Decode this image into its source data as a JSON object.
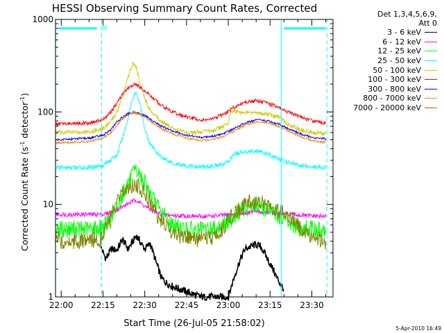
{
  "chart_data": {
    "type": "line",
    "title": "HESSI Observing Summary Count Rates, Corrected",
    "xlabel": "Start Time (26-Jul-05 21:58:02)",
    "ylabel_parts": [
      "Corrected Count Rate (s",
      "-1",
      " detector",
      "-1",
      ")"
    ],
    "x_tick_labels": [
      "22:00",
      "22:15",
      "22:30",
      "22:45",
      "23:00",
      "23:15",
      "23:30"
    ],
    "x_tick_minutes": [
      0,
      15,
      30,
      45,
      60,
      75,
      90
    ],
    "x_range_minutes": [
      -2.05,
      97.6
    ],
    "y_log": true,
    "ylim": [
      1,
      1000
    ],
    "y_tick_labels": [
      "1",
      "10",
      "100",
      "1000"
    ],
    "legend_title": [
      "Det 1,3,4,5,6,9,",
      "Att 0"
    ],
    "legend_position": "right",
    "night_marker_label": "N",
    "series": [
      {
        "name": "3 - 6 keV",
        "color": "#000000",
        "x": [
          14.3,
          16,
          18,
          20,
          22,
          24,
          26,
          27,
          28,
          30,
          32,
          34,
          36,
          38,
          40,
          50,
          60,
          62,
          64,
          66,
          68,
          70,
          72,
          74,
          76,
          78,
          80
        ],
        "y": [
          3.4,
          2.6,
          3.3,
          3.2,
          4.2,
          3.3,
          4.1,
          4.6,
          4.1,
          3.3,
          3.8,
          2.4,
          1.6,
          1.4,
          1.3,
          1.0,
          1.0,
          1.6,
          2.4,
          3.3,
          3.5,
          3.7,
          3.4,
          2.6,
          2.0,
          1.5,
          1.2
        ]
      },
      {
        "name": "6 - 12 keV",
        "color": "#ff00ff",
        "x": [
          -2,
          10,
          15,
          18,
          20,
          22,
          24,
          26,
          27,
          28,
          30,
          32,
          34,
          36,
          40,
          50,
          55,
          60,
          65,
          70,
          75,
          80,
          85,
          90,
          95
        ],
        "y": [
          7.8,
          7.8,
          7.8,
          8.2,
          8.8,
          9.4,
          10.2,
          10.9,
          11.2,
          10.6,
          9.6,
          8.8,
          8.2,
          7.8,
          7.6,
          7.4,
          7.5,
          7.7,
          8.0,
          8.3,
          8.2,
          7.9,
          7.7,
          7.5,
          7.4
        ]
      },
      {
        "name": "12 - 25 keV",
        "color": "#00ff00",
        "x": [
          -2,
          10,
          15,
          18,
          20,
          22,
          24,
          26,
          27,
          28,
          30,
          32,
          34,
          36,
          40,
          45,
          50,
          55,
          60,
          63,
          66,
          70,
          74,
          78,
          82,
          85,
          90,
          95
        ],
        "y": [
          5.4,
          5.4,
          5.6,
          7.0,
          9.5,
          13,
          17,
          21,
          22.5,
          21,
          17,
          13,
          10,
          8.0,
          6.0,
          5.3,
          5.2,
          5.5,
          6.5,
          8.0,
          9.2,
          9.8,
          9.0,
          7.5,
          6.2,
          5.6,
          5.3,
          5.2
        ]
      },
      {
        "name": "25 - 50 keV",
        "color": "#00ffff",
        "x": [
          -2,
          10,
          15,
          20,
          22,
          24,
          25,
          26,
          27,
          28,
          29,
          30,
          32,
          35,
          40,
          45,
          50,
          55,
          58,
          60,
          62,
          66,
          70,
          74,
          78,
          82,
          86,
          90,
          95
        ],
        "y": [
          25,
          25,
          26.5,
          34,
          52,
          85,
          120,
          150,
          160,
          130,
          95,
          65,
          45,
          34,
          28,
          26,
          25.5,
          26,
          27,
          29,
          35,
          37,
          38,
          35,
          31,
          28,
          26.5,
          25.5,
          25
        ]
      },
      {
        "name": "50 - 100 keV",
        "color": "#cccc00",
        "x": [
          -2,
          10,
          15,
          18,
          20,
          22,
          24,
          25,
          26,
          27,
          28,
          30,
          32,
          35,
          38,
          42,
          46,
          50,
          55,
          60,
          61,
          63,
          66,
          70,
          74,
          78,
          82,
          86,
          90,
          95
        ],
        "y": [
          60,
          61,
          66,
          80,
          100,
          150,
          230,
          300,
          340,
          300,
          220,
          140,
          105,
          85,
          72,
          64,
          60,
          60,
          64,
          74,
          105,
          100,
          98,
          98,
          95,
          88,
          73,
          64,
          60,
          58
        ]
      },
      {
        "name": "100 - 300 keV",
        "color": "#ff0000",
        "x": [
          -2,
          10,
          15,
          18,
          20,
          22,
          24,
          26,
          27,
          28,
          30,
          33,
          36,
          40,
          45,
          50,
          54,
          58,
          62,
          66,
          70,
          74,
          78,
          82,
          86,
          90,
          95
        ],
        "y": [
          74,
          76,
          82,
          100,
          125,
          155,
          180,
          196,
          198,
          190,
          170,
          140,
          118,
          100,
          88,
          82,
          83,
          93,
          112,
          128,
          132,
          125,
          112,
          98,
          88,
          80,
          76
        ]
      },
      {
        "name": "300 - 800 keV",
        "color": "#0000ff",
        "x": [
          -2,
          10,
          15,
          18,
          20,
          22,
          24,
          26,
          28,
          30,
          33,
          36,
          40,
          45,
          50,
          54,
          58,
          62,
          66,
          70,
          74,
          78,
          82,
          86,
          90,
          95
        ],
        "y": [
          50,
          52,
          56,
          65,
          78,
          88,
          96,
          99,
          97,
          91,
          80,
          70,
          62,
          56,
          53,
          54,
          58,
          66,
          76,
          82,
          80,
          74,
          65,
          58,
          53,
          51
        ]
      },
      {
        "name": "800 - 7000 keV",
        "color": "#ff8000",
        "x": [
          -2,
          10,
          15,
          18,
          20,
          22,
          24,
          26,
          28,
          30,
          33,
          36,
          40,
          45,
          50,
          54,
          58,
          62,
          66,
          70,
          74,
          78,
          82,
          86,
          90,
          95
        ],
        "y": [
          46,
          48,
          52,
          60,
          72,
          84,
          93,
          97,
          95,
          88,
          76,
          66,
          58,
          52,
          49,
          50,
          54,
          62,
          72,
          78,
          76,
          70,
          61,
          54,
          49,
          47
        ]
      },
      {
        "name": "7000 - 20000 keV",
        "color": "#808000",
        "x": [
          -2,
          10,
          14,
          15,
          18,
          20,
          22,
          24,
          26,
          28,
          30,
          32,
          34,
          36,
          40,
          45,
          50,
          55,
          58,
          60,
          64,
          68,
          72,
          76,
          80,
          84,
          88,
          92,
          95
        ],
        "y": [
          4.0,
          4.0,
          4.2,
          5.0,
          7.5,
          10,
          13,
          15.5,
          16.5,
          15.5,
          13,
          10.5,
          8,
          6.5,
          5.0,
          4.3,
          4.1,
          4.4,
          5.5,
          7,
          9,
          10.5,
          10.5,
          9.5,
          8.0,
          6.5,
          5.0,
          4.3,
          4.0
        ]
      }
    ],
    "vertical_markers": [
      {
        "kind": "dashed",
        "minutes": 14.5
      },
      {
        "kind": "dashed",
        "minutes": 95.4
      },
      {
        "kind": "solid",
        "minutes": 79.0
      },
      {
        "kind": "solid",
        "minutes": -2.0
      }
    ],
    "night_bars": [
      {
        "start_minutes": -1.0,
        "end_minutes": 12.8,
        "level": 800
      },
      {
        "start_minutes": 80.0,
        "end_minutes": 95.0,
        "level": 800
      }
    ]
  },
  "footer_timestamp": "5-Apr-2010 16:49",
  "colors": {
    "cyan_marker": "#00ffff",
    "axes": "#000000",
    "background": "#ffffff"
  }
}
